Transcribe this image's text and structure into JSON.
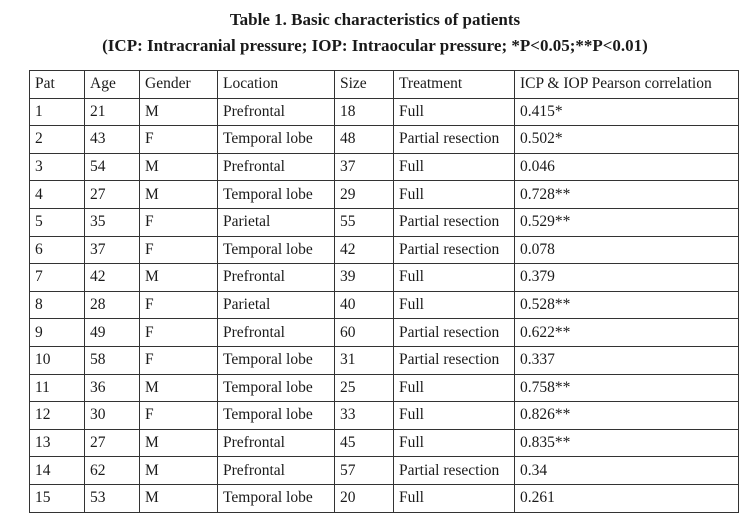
{
  "caption": {
    "title": "Table 1. Basic characteristics of patients",
    "subtitle": "(ICP: Intracranial pressure; IOP: Intraocular pressure; *P<0.05;**P<0.01)"
  },
  "table": {
    "headers": [
      "Pat",
      "Age",
      "Gender",
      "Location",
      "Size",
      "Treatment",
      "ICP & IOP Pearson correlation"
    ],
    "rows": [
      [
        "1",
        "21",
        "M",
        "Prefrontal",
        "18",
        "Full",
        "0.415*"
      ],
      [
        "2",
        "43",
        "F",
        "Temporal lobe",
        "48",
        "Partial resection",
        "0.502*"
      ],
      [
        "3",
        "54",
        "M",
        "Prefrontal",
        "37",
        "Full",
        "0.046"
      ],
      [
        "4",
        "27",
        "M",
        "Temporal lobe",
        "29",
        "Full",
        "0.728**"
      ],
      [
        "5",
        "35",
        "F",
        "Parietal",
        "55",
        "Partial resection",
        "0.529**"
      ],
      [
        "6",
        "37",
        "F",
        "Temporal lobe",
        "42",
        "Partial resection",
        "0.078"
      ],
      [
        "7",
        "42",
        "M",
        "Prefrontal",
        "39",
        "Full",
        "0.379"
      ],
      [
        "8",
        "28",
        "F",
        "Parietal",
        "40",
        "Full",
        "0.528**"
      ],
      [
        "9",
        "49",
        "F",
        "Prefrontal",
        "60",
        "Partial resection",
        "0.622**"
      ],
      [
        "10",
        "58",
        "F",
        "Temporal lobe",
        "31",
        "Partial resection",
        "0.337"
      ],
      [
        "11",
        "36",
        "M",
        "Temporal lobe",
        "25",
        "Full",
        "0.758**"
      ],
      [
        "12",
        "30",
        "F",
        "Temporal lobe",
        "33",
        "Full",
        "0.826**"
      ],
      [
        "13",
        "27",
        "M",
        "Prefrontal",
        "45",
        "Full",
        "0.835**"
      ],
      [
        "14",
        "62",
        "M",
        "Prefrontal",
        "57",
        "Partial resection",
        "0.34"
      ],
      [
        "15",
        "53",
        "M",
        "Temporal lobe",
        "20",
        "Full",
        "0.261"
      ]
    ]
  }
}
